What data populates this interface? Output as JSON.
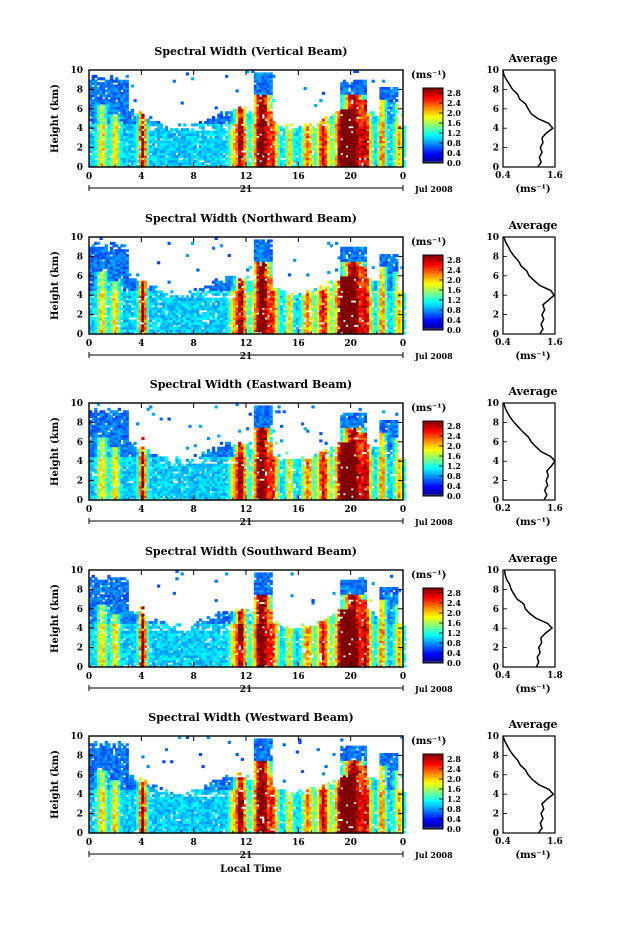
{
  "chart_data": {
    "type": "heatmap",
    "shared": {
      "time_ticks": [
        "0",
        "4",
        "8",
        "12",
        "16",
        "20",
        "0"
      ],
      "time_range": [
        0,
        24
      ],
      "height_ticks": [
        "0",
        "2",
        "4",
        "6",
        "8",
        "10"
      ],
      "height_range": [
        0,
        10
      ],
      "ylabel": "Height (km)",
      "date_day": "21",
      "date_label": "Jul 2008",
      "xlabel": "Local Time",
      "colorbar_unit": "(ms⁻¹)",
      "colorbar_ticks": [
        "0.0",
        "0.4",
        "0.8",
        "1.2",
        "1.6",
        "2.0",
        "2.4",
        "2.8"
      ],
      "colorbar_range": [
        0,
        3.0
      ],
      "avg_title": "Average",
      "avg_xlabel": "(ms⁻¹)",
      "avg_yticks": [
        "0",
        "2",
        "4",
        "6",
        "8",
        "10"
      ]
    },
    "panels": [
      {
        "title": "Spectral Width (Vertical Beam)",
        "avg_xticks": [
          "0.4",
          "1.6"
        ],
        "avg_xrange": [
          0.4,
          1.6
        ],
        "average_profile": [
          [
            1.2,
            0
          ],
          [
            1.28,
            0.5
          ],
          [
            1.24,
            1
          ],
          [
            1.3,
            1.5
          ],
          [
            1.26,
            2
          ],
          [
            1.32,
            2.5
          ],
          [
            1.3,
            3
          ],
          [
            1.4,
            3.5
          ],
          [
            1.55,
            4
          ],
          [
            1.45,
            4.5
          ],
          [
            1.2,
            5
          ],
          [
            1.05,
            5.5
          ],
          [
            0.98,
            6
          ],
          [
            0.92,
            6.5
          ],
          [
            0.78,
            7
          ],
          [
            0.74,
            7.5
          ],
          [
            0.62,
            8
          ],
          [
            0.55,
            8.5
          ],
          [
            0.48,
            9
          ],
          [
            0.42,
            9.5
          ],
          [
            0.4,
            10
          ]
        ]
      },
      {
        "title": "Spectral Width (Northward Beam)",
        "avg_xticks": [
          "0.4",
          "1.6"
        ],
        "avg_xrange": [
          0.4,
          1.6
        ],
        "average_profile": [
          [
            1.25,
            0
          ],
          [
            1.32,
            0.5
          ],
          [
            1.28,
            1
          ],
          [
            1.34,
            1.5
          ],
          [
            1.3,
            2
          ],
          [
            1.36,
            2.5
          ],
          [
            1.32,
            3
          ],
          [
            1.45,
            3.5
          ],
          [
            1.58,
            4
          ],
          [
            1.5,
            4.5
          ],
          [
            1.25,
            5
          ],
          [
            1.12,
            5.5
          ],
          [
            1.0,
            6
          ],
          [
            0.95,
            6.5
          ],
          [
            0.82,
            7
          ],
          [
            0.76,
            7.5
          ],
          [
            0.66,
            8
          ],
          [
            0.58,
            8.5
          ],
          [
            0.52,
            9
          ],
          [
            0.46,
            9.5
          ],
          [
            0.42,
            10
          ]
        ]
      },
      {
        "title": "Spectral Width (Eastward Beam)",
        "avg_xticks": [
          "0.2",
          "1.6"
        ],
        "avg_xrange": [
          0.2,
          1.6
        ],
        "average_profile": [
          [
            1.3,
            0
          ],
          [
            1.38,
            0.5
          ],
          [
            1.32,
            1
          ],
          [
            1.4,
            1.5
          ],
          [
            1.36,
            2
          ],
          [
            1.42,
            2.5
          ],
          [
            1.38,
            3
          ],
          [
            1.5,
            3.5
          ],
          [
            1.6,
            4
          ],
          [
            1.48,
            4.5
          ],
          [
            1.22,
            5
          ],
          [
            1.08,
            5.5
          ],
          [
            0.96,
            6
          ],
          [
            0.88,
            6.5
          ],
          [
            0.74,
            7
          ],
          [
            0.62,
            7.5
          ],
          [
            0.5,
            8
          ],
          [
            0.4,
            8.5
          ],
          [
            0.32,
            9
          ],
          [
            0.26,
            9.5
          ],
          [
            0.22,
            10
          ]
        ]
      },
      {
        "title": "Spectral Width (Southward Beam)",
        "avg_xticks": [
          "0.4",
          "1.8"
        ],
        "avg_xrange": [
          0.4,
          1.8
        ],
        "average_profile": [
          [
            1.3,
            0
          ],
          [
            1.36,
            0.5
          ],
          [
            1.32,
            1
          ],
          [
            1.4,
            1.5
          ],
          [
            1.36,
            2
          ],
          [
            1.44,
            2.5
          ],
          [
            1.42,
            3
          ],
          [
            1.55,
            3.5
          ],
          [
            1.72,
            4
          ],
          [
            1.6,
            4.5
          ],
          [
            1.3,
            5
          ],
          [
            1.12,
            5.5
          ],
          [
            1.0,
            6
          ],
          [
            0.96,
            6.5
          ],
          [
            0.78,
            7
          ],
          [
            0.7,
            7.5
          ],
          [
            0.62,
            8
          ],
          [
            0.58,
            8.5
          ],
          [
            0.5,
            9
          ],
          [
            0.46,
            9.5
          ],
          [
            0.44,
            10
          ]
        ]
      },
      {
        "title": "Spectral Width (Westward Beam)",
        "avg_xticks": [
          "0.4",
          "1.6"
        ],
        "avg_xrange": [
          0.4,
          1.6
        ],
        "average_profile": [
          [
            1.22,
            0
          ],
          [
            1.3,
            0.5
          ],
          [
            1.26,
            1
          ],
          [
            1.32,
            1.5
          ],
          [
            1.28,
            2
          ],
          [
            1.34,
            2.5
          ],
          [
            1.3,
            3
          ],
          [
            1.42,
            3.5
          ],
          [
            1.56,
            4
          ],
          [
            1.46,
            4.5
          ],
          [
            1.22,
            5
          ],
          [
            1.08,
            5.5
          ],
          [
            0.98,
            6
          ],
          [
            0.92,
            6.5
          ],
          [
            0.8,
            7
          ],
          [
            0.74,
            7.5
          ],
          [
            0.64,
            8
          ],
          [
            0.56,
            8.5
          ],
          [
            0.5,
            9
          ],
          [
            0.44,
            9.5
          ],
          [
            0.4,
            10
          ]
        ]
      }
    ]
  }
}
